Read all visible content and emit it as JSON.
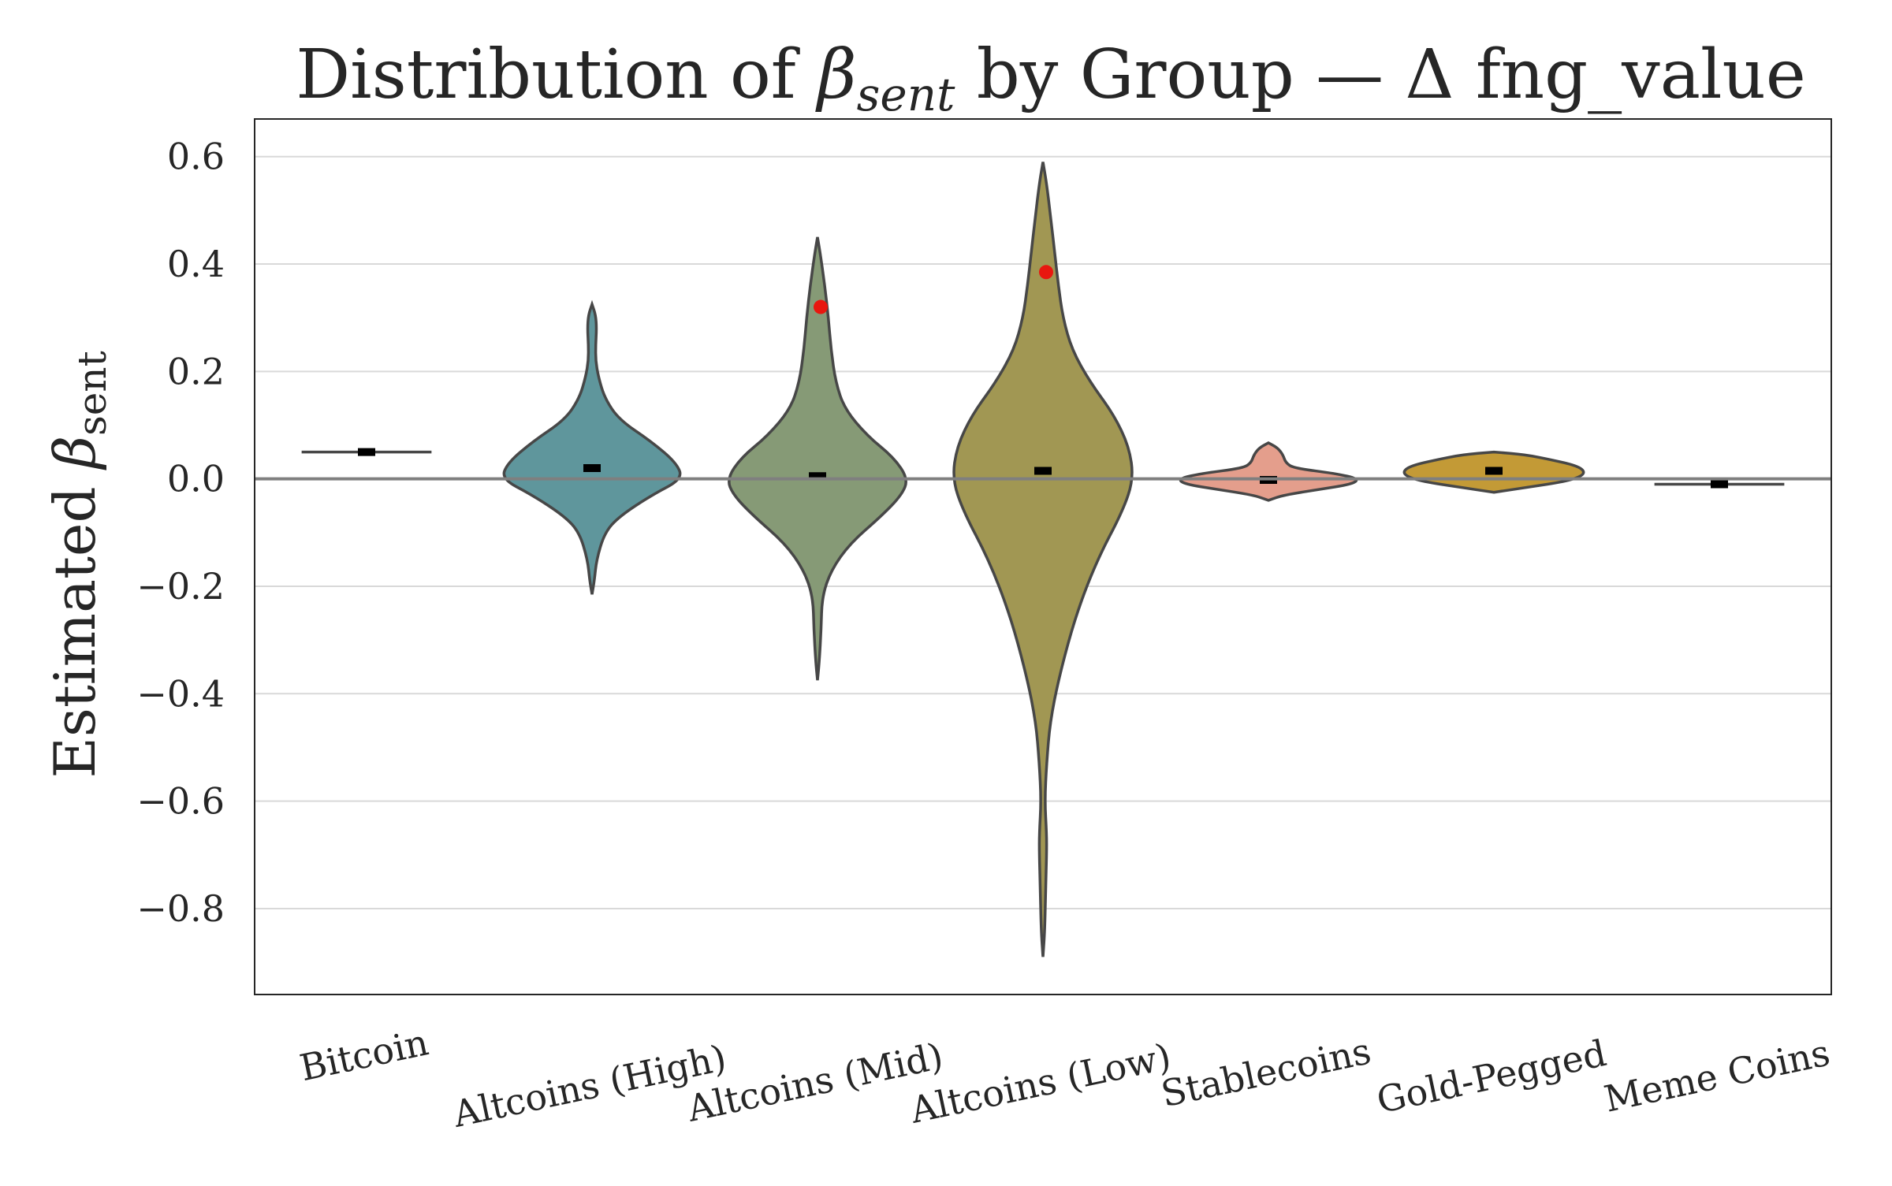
{
  "chart_data": {
    "type": "violin",
    "title": "Distribution of β_sent by Group — Δ fng_value",
    "title_parts": {
      "prefix": "Distribution of ",
      "symbol": "β",
      "subscript": "sent",
      "suffix": " by Group — Δ fng_value"
    },
    "ylabel_parts": {
      "prefix": "Estimated ",
      "symbol": "β",
      "subscript": "sent"
    },
    "xlabel": "",
    "ylim": [
      -0.96,
      0.67
    ],
    "yticks": [
      0.6,
      0.4,
      0.2,
      0.0,
      -0.2,
      -0.4,
      -0.6,
      -0.8
    ],
    "ytick_labels": [
      "0.6",
      "0.4",
      "0.2",
      "0.0",
      "−0.2",
      "−0.4",
      "−0.6",
      "−0.8"
    ],
    "grid": true,
    "reference_line": 0.0,
    "categories": [
      "Bitcoin",
      "Altcoins (High)",
      "Altcoins (Mid)",
      "Altcoins (Low)",
      "Stablecoins",
      "Gold-Pegged",
      "Meme Coins"
    ],
    "colors": [
      "#5f969c",
      "#5f969c",
      "#869a76",
      "#a19753",
      "#e49e8c",
      "#c39a36",
      "#474747"
    ],
    "groups": [
      {
        "name": "Bitcoin",
        "kind": "single",
        "value": 0.05,
        "median": 0.05,
        "marker": null,
        "width": 0.4
      },
      {
        "name": "Altcoins (High)",
        "kind": "violin",
        "median": 0.02,
        "marker": null,
        "profile": [
          [
            -0.215,
            0.0
          ],
          [
            -0.19,
            0.025
          ],
          [
            -0.15,
            0.05
          ],
          [
            -0.1,
            0.14
          ],
          [
            -0.07,
            0.3
          ],
          [
            -0.03,
            0.66
          ],
          [
            0.0,
            1.0
          ],
          [
            0.03,
            0.93
          ],
          [
            0.07,
            0.65
          ],
          [
            0.11,
            0.3
          ],
          [
            0.15,
            0.14
          ],
          [
            0.19,
            0.07
          ],
          [
            0.22,
            0.04
          ],
          [
            0.25,
            0.04
          ],
          [
            0.28,
            0.05
          ],
          [
            0.305,
            0.04
          ],
          [
            0.325,
            0.0
          ]
        ]
      },
      {
        "name": "Altcoins (Mid)",
        "kind": "violin",
        "median": 0.005,
        "marker": 0.32,
        "profile": [
          [
            -0.375,
            0.0
          ],
          [
            -0.34,
            0.02
          ],
          [
            -0.28,
            0.04
          ],
          [
            -0.22,
            0.05
          ],
          [
            -0.17,
            0.15
          ],
          [
            -0.12,
            0.36
          ],
          [
            -0.07,
            0.7
          ],
          [
            -0.03,
            0.93
          ],
          [
            0.0,
            1.0
          ],
          [
            0.04,
            0.84
          ],
          [
            0.08,
            0.55
          ],
          [
            0.13,
            0.3
          ],
          [
            0.18,
            0.2
          ],
          [
            0.24,
            0.15
          ],
          [
            0.3,
            0.12
          ],
          [
            0.36,
            0.08
          ],
          [
            0.42,
            0.03
          ],
          [
            0.45,
            0.0
          ]
        ]
      },
      {
        "name": "Altcoins (Low)",
        "kind": "violin",
        "median": 0.015,
        "marker": 0.385,
        "profile": [
          [
            -0.89,
            0.0
          ],
          [
            -0.84,
            0.02
          ],
          [
            -0.76,
            0.03
          ],
          [
            -0.7,
            0.04
          ],
          [
            -0.66,
            0.04
          ],
          [
            -0.6,
            0.02
          ],
          [
            -0.53,
            0.04
          ],
          [
            -0.45,
            0.08
          ],
          [
            -0.36,
            0.19
          ],
          [
            -0.25,
            0.37
          ],
          [
            -0.15,
            0.6
          ],
          [
            -0.06,
            0.88
          ],
          [
            0.0,
            1.0
          ],
          [
            0.06,
            0.95
          ],
          [
            0.12,
            0.78
          ],
          [
            0.18,
            0.52
          ],
          [
            0.24,
            0.32
          ],
          [
            0.3,
            0.22
          ],
          [
            0.36,
            0.17
          ],
          [
            0.42,
            0.13
          ],
          [
            0.48,
            0.09
          ],
          [
            0.55,
            0.04
          ],
          [
            0.59,
            0.0
          ]
        ]
      },
      {
        "name": "Stablecoins",
        "kind": "violin",
        "median": -0.002,
        "marker": null,
        "profile": [
          [
            -0.04,
            0.0
          ],
          [
            -0.03,
            0.17
          ],
          [
            -0.02,
            0.55
          ],
          [
            -0.01,
            0.92
          ],
          [
            0.0,
            1.0
          ],
          [
            0.01,
            0.74
          ],
          [
            0.02,
            0.28
          ],
          [
            0.03,
            0.19
          ],
          [
            0.045,
            0.16
          ],
          [
            0.058,
            0.1
          ],
          [
            0.067,
            0.0
          ]
        ]
      },
      {
        "name": "Gold-Pegged",
        "kind": "violin",
        "median": 0.015,
        "marker": null,
        "profile": [
          [
            -0.025,
            0.0
          ],
          [
            -0.015,
            0.4
          ],
          [
            -0.005,
            0.78
          ],
          [
            0.005,
            0.97
          ],
          [
            0.015,
            1.0
          ],
          [
            0.025,
            0.9
          ],
          [
            0.035,
            0.65
          ],
          [
            0.045,
            0.35
          ],
          [
            0.05,
            0.0
          ]
        ]
      },
      {
        "name": "Meme Coins",
        "kind": "single",
        "value": -0.01,
        "median": -0.01,
        "marker": null,
        "width": 0.4
      }
    ]
  }
}
